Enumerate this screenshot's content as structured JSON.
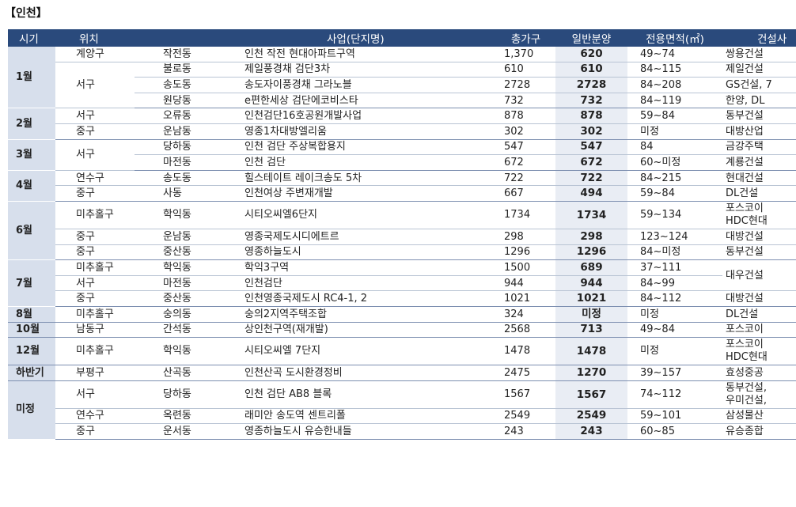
{
  "section_title": "【인천】",
  "headers": {
    "period": "시기",
    "location": "위치",
    "project": "사업(단지명)",
    "total": "총가구",
    "general": "일반분양",
    "area": "전용면적(㎡)",
    "contractor": "건설사"
  },
  "rows": [
    {
      "month": "1월",
      "gu": "계양구",
      "dong": "작전동",
      "project": "인천 작전 현대아파트구역",
      "total": "1,370",
      "general": "620",
      "area": "49~74",
      "contractor": "쌍용건설"
    },
    {
      "month": "",
      "gu": "서구",
      "dong": "불로동",
      "project": "제일풍경채 검단3차",
      "total": "610",
      "general": "610",
      "area": "84~115",
      "contractor": "제일건설"
    },
    {
      "month": "",
      "gu": "",
      "dong": "송도동",
      "project": "송도자이풍경채 그라노블",
      "total": "2728",
      "general": "2728",
      "area": "84~208",
      "contractor": "GS건설, 7"
    },
    {
      "month": "",
      "gu": "",
      "dong": "원당동",
      "project": "e편한세상 검단에코비스타",
      "total": "732",
      "general": "732",
      "area": "84~119",
      "contractor": "한양, DL"
    },
    {
      "month": "2월",
      "gu": "서구",
      "dong": "오류동",
      "project": "인천검단16호공원개발사업",
      "total": "878",
      "general": "878",
      "area": "59~84",
      "contractor": "동부건설"
    },
    {
      "month": "",
      "gu": "중구",
      "dong": "운남동",
      "project": "영종1차대방엘리움",
      "total": "302",
      "general": "302",
      "area": "미정",
      "contractor": "대방산업"
    },
    {
      "month": "3월",
      "gu": "서구",
      "dong": "당하동",
      "project": "인천 검단 주상복합용지",
      "total": "547",
      "general": "547",
      "area": "84",
      "contractor": "금강주택"
    },
    {
      "month": "",
      "gu": "",
      "dong": "마전동",
      "project": "인천 검단",
      "total": "672",
      "general": "672",
      "area": "60~미정",
      "contractor": "계룡건설"
    },
    {
      "month": "4월",
      "gu": "연수구",
      "dong": "송도동",
      "project": "힐스테이트 레이크송도 5차",
      "total": "722",
      "general": "722",
      "area": "84~215",
      "contractor": "현대건설"
    },
    {
      "month": "",
      "gu": "중구",
      "dong": "사동",
      "project": "인천여상 주변재개발",
      "total": "667",
      "general": "494",
      "area": "59~84",
      "contractor": "DL건설"
    },
    {
      "month": "6월",
      "gu": "미추홀구",
      "dong": "학익동",
      "project": "시티오씨엘6단지",
      "total": "1734",
      "general": "1734",
      "area": "59~134",
      "contractor": "포스코이",
      "contractor2": "HDC현대"
    },
    {
      "month": "",
      "gu": "중구",
      "dong": "운남동",
      "project": "영종국제도시디에트르",
      "total": "298",
      "general": "298",
      "area": "123~124",
      "contractor": "대방건설"
    },
    {
      "month": "",
      "gu": "중구",
      "dong": "중산동",
      "project": "영종하늘도시",
      "total": "1296",
      "general": "1296",
      "area": "84~미정",
      "contractor": "동부건설"
    },
    {
      "month": "7월",
      "gu": "미추홀구",
      "dong": "학익동",
      "project": "학익3구역",
      "total": "1500",
      "general": "689",
      "area": "37~111",
      "contractor": "대우건설"
    },
    {
      "month": "",
      "gu": "서구",
      "dong": "마전동",
      "project": "인천검단",
      "total": "944",
      "general": "944",
      "area": "84~99",
      "contractor": ""
    },
    {
      "month": "",
      "gu": "중구",
      "dong": "중산동",
      "project": "인천영종국제도시 RC4-1, 2",
      "total": "1021",
      "general": "1021",
      "area": "84~112",
      "contractor": "대방건설"
    },
    {
      "month": "8월",
      "gu": "미추홀구",
      "dong": "숭의동",
      "project": "숭의2지역주택조합",
      "total": "324",
      "general": "미정",
      "area": "미정",
      "contractor": "DL건설"
    },
    {
      "month": "10월",
      "gu": "남동구",
      "dong": "간석동",
      "project": "상인천구역(재개발)",
      "total": "2568",
      "general": "713",
      "area": "49~84",
      "contractor": "포스코이"
    },
    {
      "month": "12월",
      "gu": "미추홀구",
      "dong": "학익동",
      "project": "시티오씨엘 7단지",
      "total": "1478",
      "general": "1478",
      "area": "미정",
      "contractor": "포스코이",
      "contractor2": "HDC현대"
    },
    {
      "month": "하반기",
      "gu": "부평구",
      "dong": "산곡동",
      "project": "인천산곡 도시환경정비",
      "total": "2475",
      "general": "1270",
      "area": "39~157",
      "contractor": "효성중공"
    },
    {
      "month": "미정",
      "gu": "서구",
      "dong": "당하동",
      "project": "인천 검단 AB8 블록",
      "total": "1567",
      "general": "1567",
      "area": "74~112",
      "contractor": "동부건설,",
      "contractor2": "우미건설,"
    },
    {
      "month": "",
      "gu": "연수구",
      "dong": "옥련동",
      "project": "래미안 송도역 센트리폴",
      "total": "2549",
      "general": "2549",
      "area": "59~101",
      "contractor": "삼성물산"
    },
    {
      "month": "",
      "gu": "중구",
      "dong": "운서동",
      "project": "영종하늘도시 유승한내들",
      "total": "243",
      "general": "243",
      "area": "60~85",
      "contractor": "유승종합"
    }
  ]
}
